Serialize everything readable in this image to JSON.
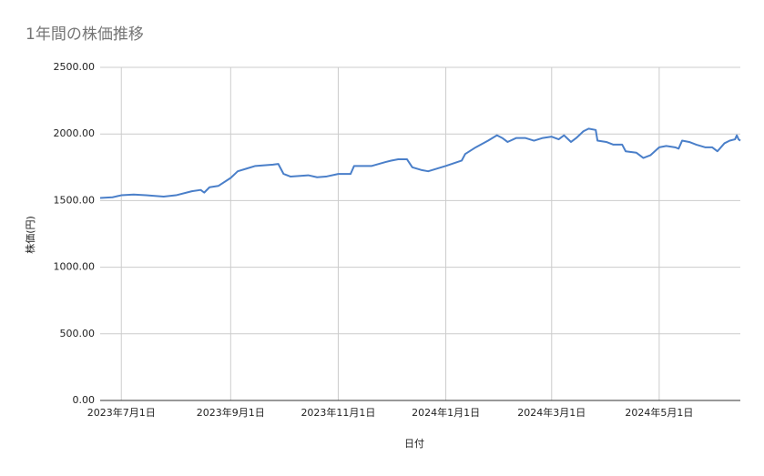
{
  "chart_data": {
    "type": "line",
    "title": "1年間の株価推移",
    "x_label": "日付",
    "y_label": "株価(円)",
    "x": [
      "2023-06-19",
      "2023-06-26",
      "2023-07-01",
      "2023-07-08",
      "2023-07-15",
      "2023-07-25",
      "2023-08-01",
      "2023-08-10",
      "2023-08-15",
      "2023-08-17",
      "2023-08-20",
      "2023-08-25",
      "2023-09-01",
      "2023-09-05",
      "2023-09-10",
      "2023-09-15",
      "2023-09-25",
      "2023-09-28",
      "2023-10-01",
      "2023-10-05",
      "2023-10-15",
      "2023-10-20",
      "2023-10-25",
      "2023-11-01",
      "2023-11-08",
      "2023-11-10",
      "2023-11-15",
      "2023-11-20",
      "2023-11-28",
      "2023-12-01",
      "2023-12-05",
      "2023-12-10",
      "2023-12-13",
      "2023-12-18",
      "2023-12-22",
      "2024-01-01",
      "2024-01-10",
      "2024-01-12",
      "2024-01-18",
      "2024-01-25",
      "2024-01-30",
      "2024-02-02",
      "2024-02-05",
      "2024-02-10",
      "2024-02-15",
      "2024-02-20",
      "2024-02-25",
      "2024-03-01",
      "2024-03-05",
      "2024-03-08",
      "2024-03-12",
      "2024-03-15",
      "2024-03-19",
      "2024-03-22",
      "2024-03-26",
      "2024-03-27",
      "2024-04-01",
      "2024-04-05",
      "2024-04-10",
      "2024-04-12",
      "2024-04-18",
      "2024-04-22",
      "2024-04-26",
      "2024-05-01",
      "2024-05-05",
      "2024-05-10",
      "2024-05-12",
      "2024-05-14",
      "2024-05-18",
      "2024-05-22",
      "2024-05-27",
      "2024-05-31",
      "2024-06-03",
      "2024-06-07",
      "2024-06-10",
      "2024-06-13",
      "2024-06-14",
      "2024-06-15",
      "2024-06-16"
    ],
    "values": [
      1520,
      1525,
      1540,
      1545,
      1540,
      1530,
      1540,
      1570,
      1580,
      1560,
      1600,
      1610,
      1670,
      1720,
      1740,
      1760,
      1770,
      1775,
      1700,
      1680,
      1690,
      1675,
      1680,
      1700,
      1700,
      1760,
      1760,
      1760,
      1790,
      1800,
      1810,
      1810,
      1750,
      1730,
      1720,
      1760,
      1800,
      1850,
      1900,
      1950,
      1990,
      1970,
      1940,
      1970,
      1970,
      1950,
      1970,
      1980,
      1960,
      1990,
      1940,
      1970,
      2020,
      2040,
      2030,
      1950,
      1940,
      1920,
      1920,
      1870,
      1860,
      1820,
      1840,
      1900,
      1910,
      1900,
      1890,
      1950,
      1940,
      1920,
      1900,
      1900,
      1870,
      1930,
      1950,
      1960,
      1990,
      1960,
      1950
    ],
    "color": "#4a7fc9",
    "xlim": [
      "2023-06-19",
      "2024-06-16"
    ],
    "xticks": [
      {
        "value": "2023-07-01",
        "label": "2023年7月1日"
      },
      {
        "value": "2023-09-01",
        "label": "2023年9月1日"
      },
      {
        "value": "2023-11-01",
        "label": "2023年11月1日"
      },
      {
        "value": "2024-01-01",
        "label": "2024年1月1日"
      },
      {
        "value": "2024-03-01",
        "label": "2024年3月1日"
      },
      {
        "value": "2024-05-01",
        "label": "2024年5月1日"
      }
    ],
    "ylim": [
      0,
      2500
    ],
    "yticks": [
      {
        "value": 0,
        "label": "0.00"
      },
      {
        "value": 500,
        "label": "500.00"
      },
      {
        "value": 1000,
        "label": "1000.00"
      },
      {
        "value": 1500,
        "label": "1500.00"
      },
      {
        "value": 2000,
        "label": "2000.00"
      },
      {
        "value": 2500,
        "label": "2500.00"
      }
    ],
    "grid": true
  }
}
